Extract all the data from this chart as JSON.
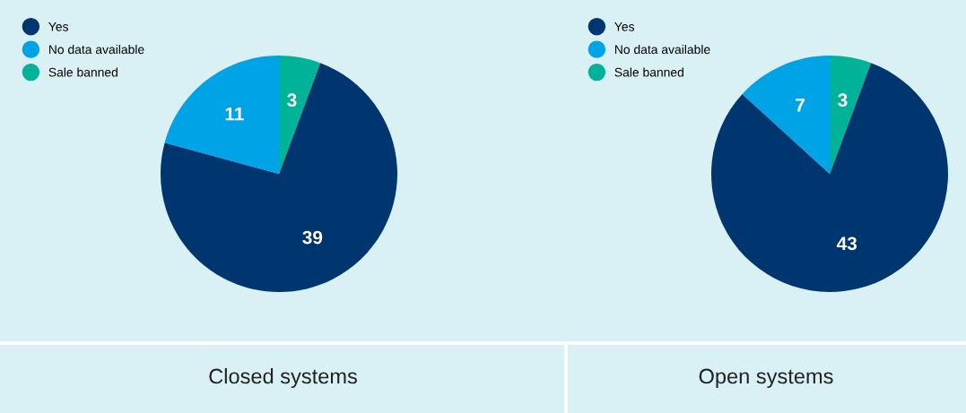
{
  "chart_data": [
    {
      "type": "pie",
      "title": "Closed systems",
      "categories": [
        "Yes",
        "No data available",
        "Sale banned"
      ],
      "values": [
        39,
        11,
        3
      ],
      "colors": [
        "#003670",
        "#00a3e6",
        "#00b398"
      ],
      "data_labels": true,
      "legend": "top left"
    },
    {
      "type": "pie",
      "title": "Open systems",
      "categories": [
        "Yes",
        "No data available",
        "Sale banned"
      ],
      "values": [
        43,
        7,
        3
      ],
      "colors": [
        "#003670",
        "#00a3e6",
        "#00b398"
      ],
      "data_labels": true,
      "legend": "top left"
    }
  ]
}
